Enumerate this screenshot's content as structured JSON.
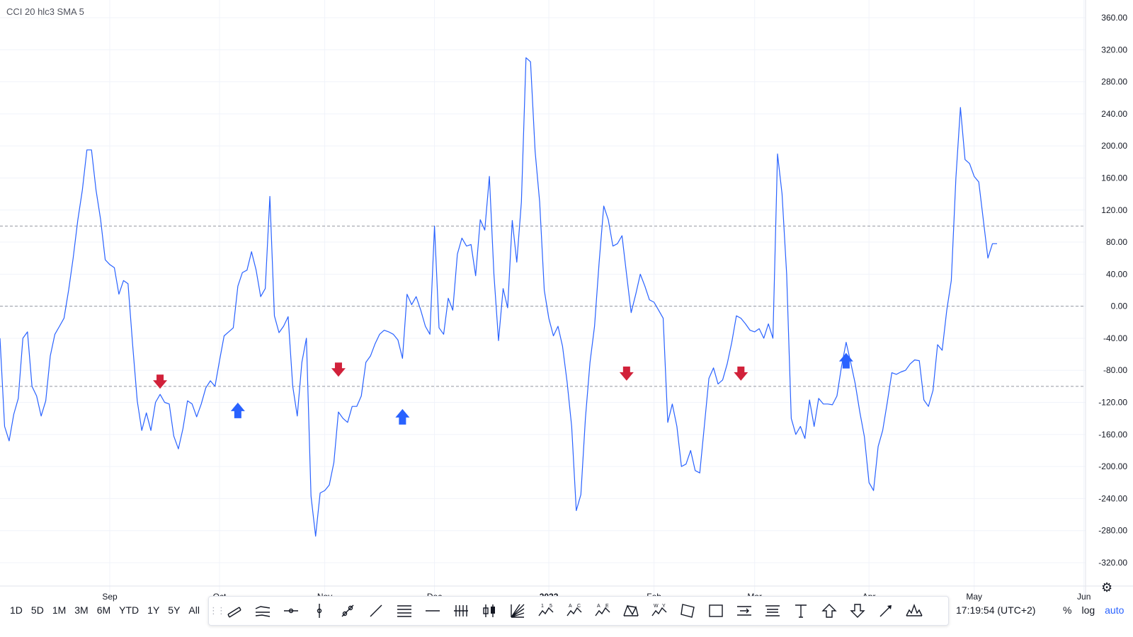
{
  "study_label": "CCI 20 hlc3 SMA 5",
  "chart_data": {
    "type": "line",
    "title": "CCI 20 hlc3 SMA 5",
    "ylim": [
      -340,
      360
    ],
    "y_ticks": [
      "360.00",
      "320.00",
      "280.00",
      "240.00",
      "200.00",
      "160.00",
      "120.00",
      "80.00",
      "40.00",
      "0.00",
      "-40.00",
      "-80.00",
      "-120.00",
      "-160.00",
      "-200.00",
      "-240.00",
      "-280.00",
      "-320.00"
    ],
    "x_ticks": [
      {
        "label": "Sep",
        "bar": 24,
        "bold": false
      },
      {
        "label": "Oct",
        "bar": 48,
        "bold": false
      },
      {
        "label": "Nov",
        "bar": 71,
        "bold": false
      },
      {
        "label": "Dec",
        "bar": 95,
        "bold": false
      },
      {
        "label": "2022",
        "bar": 120,
        "bold": true
      },
      {
        "label": "Feb",
        "bar": 143,
        "bold": false
      },
      {
        "label": "Mar",
        "bar": 165,
        "bold": false
      },
      {
        "label": "Apr",
        "bar": 190,
        "bold": false
      },
      {
        "label": "May",
        "bar": 213,
        "bold": false
      },
      {
        "label": "Jun",
        "bar": 237,
        "bold": false
      }
    ],
    "reference_lines": [
      100,
      0,
      -100
    ],
    "line_color": "#2962ff",
    "series": [
      {
        "values": [
          -40,
          -150,
          -168,
          -135,
          -115,
          -40,
          -32,
          -100,
          -112,
          -137,
          -118,
          -62,
          -35,
          -25,
          -15,
          20,
          60,
          107,
          145,
          195,
          195,
          145,
          108,
          58,
          52,
          48,
          15,
          32,
          28,
          -48,
          -118,
          -155,
          -133,
          -155,
          -120,
          -110,
          -120,
          -122,
          -162,
          -178,
          -153,
          -118,
          -122,
          -138,
          -122,
          -102,
          -93,
          -100,
          -68,
          -37,
          -32,
          -27,
          25,
          42,
          45,
          68,
          45,
          12,
          22,
          137,
          -12,
          -33,
          -25,
          -13,
          -100,
          -137,
          -70,
          -40,
          -237,
          -287,
          -233,
          -230,
          -223,
          -195,
          -132,
          -140,
          -145,
          -125,
          -125,
          -112,
          -70,
          -62,
          -47,
          -35,
          -30,
          -32,
          -35,
          -42,
          -65,
          15,
          2,
          12,
          -5,
          -25,
          -35,
          100,
          -27,
          -35,
          10,
          -5,
          65,
          85,
          75,
          77,
          38,
          108,
          95,
          162,
          40,
          -43,
          22,
          -2,
          107,
          55,
          130,
          310,
          305,
          193,
          130,
          20,
          -15,
          -37,
          -25,
          -50,
          -95,
          -150,
          -255,
          -235,
          -140,
          -70,
          -25,
          55,
          125,
          108,
          75,
          78,
          88,
          40,
          -8,
          15,
          40,
          25,
          8,
          5,
          -5,
          -15,
          -145,
          -122,
          -150,
          -200,
          -197,
          -180,
          -205,
          -208,
          -150,
          -90,
          -77,
          -97,
          -92,
          -72,
          -45,
          -12,
          -15,
          -22,
          -30,
          -32,
          -28,
          -40,
          -22,
          -40,
          190,
          140,
          40,
          -140,
          -160,
          -150,
          -165,
          -117,
          -150,
          -115,
          -122,
          -122,
          -123,
          -112,
          -75,
          -45,
          -70,
          -97,
          -132,
          -163,
          -220,
          -230,
          -175,
          -155,
          -120,
          -83,
          -85,
          -82,
          -80,
          -72,
          -67,
          -68,
          -117,
          -125,
          -105,
          -48,
          -55,
          -5,
          32,
          160,
          248,
          183,
          178,
          162,
          155,
          108,
          60,
          78,
          78
        ]
      }
    ],
    "signals": [
      {
        "type": "sell",
        "bar": 35,
        "y_value": -95,
        "color": "#d1213a"
      },
      {
        "type": "buy",
        "bar": 52,
        "y_value": -130,
        "color": "#2962ff"
      },
      {
        "type": "sell",
        "bar": 74,
        "y_value": -80,
        "color": "#d1213a"
      },
      {
        "type": "buy",
        "bar": 88,
        "y_value": -138,
        "color": "#2962ff"
      },
      {
        "type": "sell",
        "bar": 137,
        "y_value": -85,
        "color": "#d1213a"
      },
      {
        "type": "sell",
        "bar": 162,
        "y_value": -85,
        "color": "#d1213a"
      },
      {
        "type": "buy",
        "bar": 185,
        "y_value": -68,
        "color": "#2962ff"
      }
    ]
  },
  "range_buttons": [
    "1D",
    "5D",
    "1M",
    "3M",
    "6M",
    "YTD",
    "1Y",
    "5Y",
    "All"
  ],
  "tools": [
    {
      "name": "parallel-channel-icon"
    },
    {
      "name": "regression-trend-icon"
    },
    {
      "name": "horizontal-ray-icon"
    },
    {
      "name": "vertical-line-icon"
    },
    {
      "name": "trend-line-points-icon"
    },
    {
      "name": "trend-line-icon"
    },
    {
      "name": "horizontal-lines-icon"
    },
    {
      "name": "horizontal-line-icon"
    },
    {
      "name": "vertical-lines-icon"
    },
    {
      "name": "candles-icon"
    },
    {
      "name": "fib-fan-icon"
    },
    {
      "name": "pattern-15-icon",
      "label": "1 5"
    },
    {
      "name": "pattern-ac-icon",
      "label": "A C"
    },
    {
      "name": "pattern-ae-icon",
      "label": "A E"
    },
    {
      "name": "triangle-pattern-icon"
    },
    {
      "name": "pattern-wy-icon",
      "label": "W Y"
    },
    {
      "name": "rotated-rectangle-icon"
    },
    {
      "name": "rectangle-icon"
    },
    {
      "name": "date-range-icon"
    },
    {
      "name": "price-range-icon"
    },
    {
      "name": "text-icon"
    },
    {
      "name": "arrow-up-icon"
    },
    {
      "name": "arrow-down-icon"
    },
    {
      "name": "arrow-icon"
    },
    {
      "name": "head-shoulders-icon"
    }
  ],
  "clock": "17:19:54 (UTC+2)",
  "right_buttons": {
    "percent": "%",
    "log": "log",
    "auto": "auto"
  }
}
